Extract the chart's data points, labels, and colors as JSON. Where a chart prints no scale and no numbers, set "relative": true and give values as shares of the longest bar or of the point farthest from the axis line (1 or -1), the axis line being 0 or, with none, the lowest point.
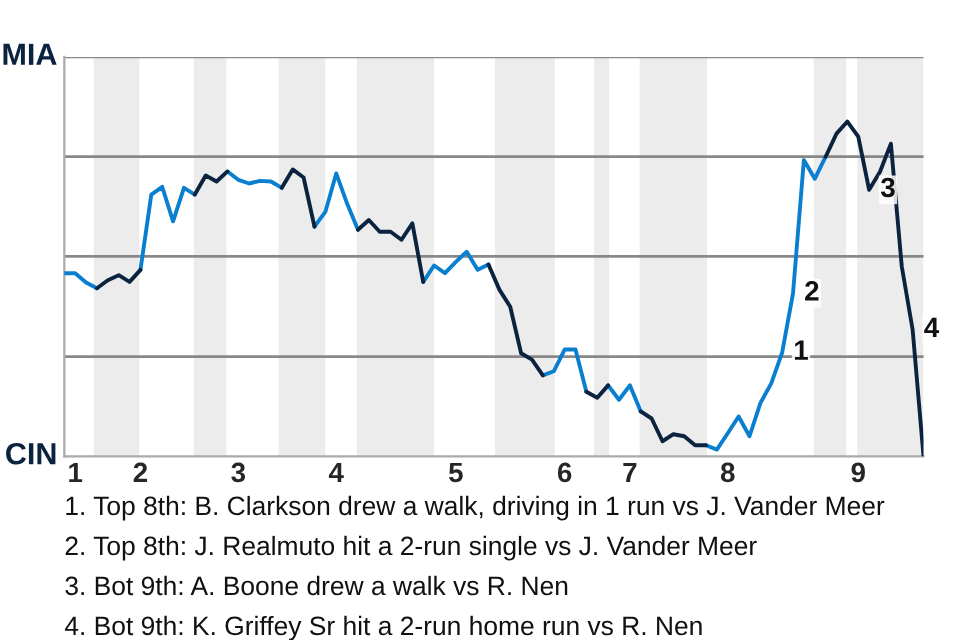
{
  "chart_data": {
    "type": "line",
    "relative": true,
    "categories": [
      null,
      "1",
      null,
      null,
      null,
      null,
      null,
      "2",
      null,
      null,
      null,
      null,
      null,
      null,
      null,
      null,
      "3",
      null,
      null,
      null,
      null,
      null,
      null,
      null,
      null,
      "4",
      null,
      null,
      null,
      null,
      null,
      null,
      null,
      null,
      null,
      null,
      "5",
      null,
      null,
      null,
      null,
      null,
      null,
      null,
      null,
      null,
      "6",
      null,
      null,
      null,
      null,
      null,
      "7",
      null,
      null,
      null,
      null,
      null,
      null,
      null,
      null,
      "8",
      null,
      null,
      null,
      null,
      null,
      null,
      null,
      null,
      null,
      null,
      null,
      "9",
      null,
      null,
      null,
      null,
      null,
      null
    ],
    "ref_lines": [
      {
        "axis": "y",
        "value": 0.298,
        "color": "#888888"
      },
      {
        "axis": "y",
        "value": 0.597,
        "color": "#888888"
      },
      {
        "axis": "y",
        "value": 0.895,
        "color": "#888888"
      },
      {
        "axis": "y",
        "value": 1.193,
        "color": "#888888"
      }
    ],
    "series": [
      {
        "color": "#0a7fd0",
        "values": [
          0.547,
          0.547,
          0.519,
          0.502,
          null,
          null,
          null,
          0.557,
          0.782,
          0.805,
          0.702,
          0.802,
          0.782,
          null,
          null,
          0.851,
          0.826,
          0.815,
          0.823,
          0.821,
          0.802,
          null,
          null,
          0.686,
          0.73,
          0.845,
          0.755,
          0.677,
          null,
          null,
          null,
          null,
          null,
          0.521,
          0.57,
          0.547,
          0.581,
          0.611,
          0.557,
          0.573,
          null,
          null,
          null,
          null,
          0.242,
          0.254,
          0.319,
          0.319,
          0.193,
          null,
          0.212,
          0.169,
          0.212,
          0.134,
          null,
          null,
          null,
          null,
          null,
          0.033,
          0.02,
          0.069,
          0.119,
          0.06,
          0.159,
          0.218,
          0.31,
          0.487,
          0.885,
          0.829,
          0.895,
          null,
          null,
          null,
          null,
          null,
          null,
          null,
          null,
          null
        ]
      },
      {
        "color": "#0c2340",
        "values": [
          null,
          null,
          null,
          0.502,
          0.526,
          0.541,
          0.521,
          0.557,
          null,
          null,
          null,
          null,
          0.782,
          0.839,
          0.821,
          0.851,
          null,
          null,
          null,
          null,
          0.802,
          0.857,
          0.833,
          0.686,
          null,
          null,
          null,
          0.677,
          0.706,
          0.671,
          0.671,
          0.647,
          0.696,
          0.521,
          null,
          null,
          null,
          null,
          null,
          0.573,
          0.498,
          0.447,
          0.308,
          0.289,
          0.242,
          null,
          null,
          null,
          0.193,
          0.175,
          0.212,
          null,
          null,
          0.134,
          0.113,
          0.045,
          0.066,
          0.06,
          0.033,
          0.033,
          null,
          null,
          null,
          null,
          null,
          null,
          null,
          null,
          null,
          null,
          0.895,
          0.964,
          1,
          0.955,
          0.796,
          0.85,
          0.934,
          0.567,
          0.378,
          0
        ]
      }
    ],
    "annotations": [
      {
        "text": "1",
        "y": 0.31
      },
      {
        "text": "2",
        "y": 0.487
      },
      {
        "text": "3",
        "y": 0.796
      },
      {
        "text": "4",
        "y": 0.378
      },
      "MIA",
      "CIN",
      "1. Top 8th: B. Clarkson drew a walk, driving in 1 run vs J. Vander Meer",
      "2. Top 8th: J. Realmuto hit a 2-run single vs J. Vander Meer",
      "3. Bot 9th: A. Boone drew a walk vs R. Nen",
      "4. Bot 9th: K. Griffey Sr hit a 2-run home run vs R. Nen"
    ]
  }
}
